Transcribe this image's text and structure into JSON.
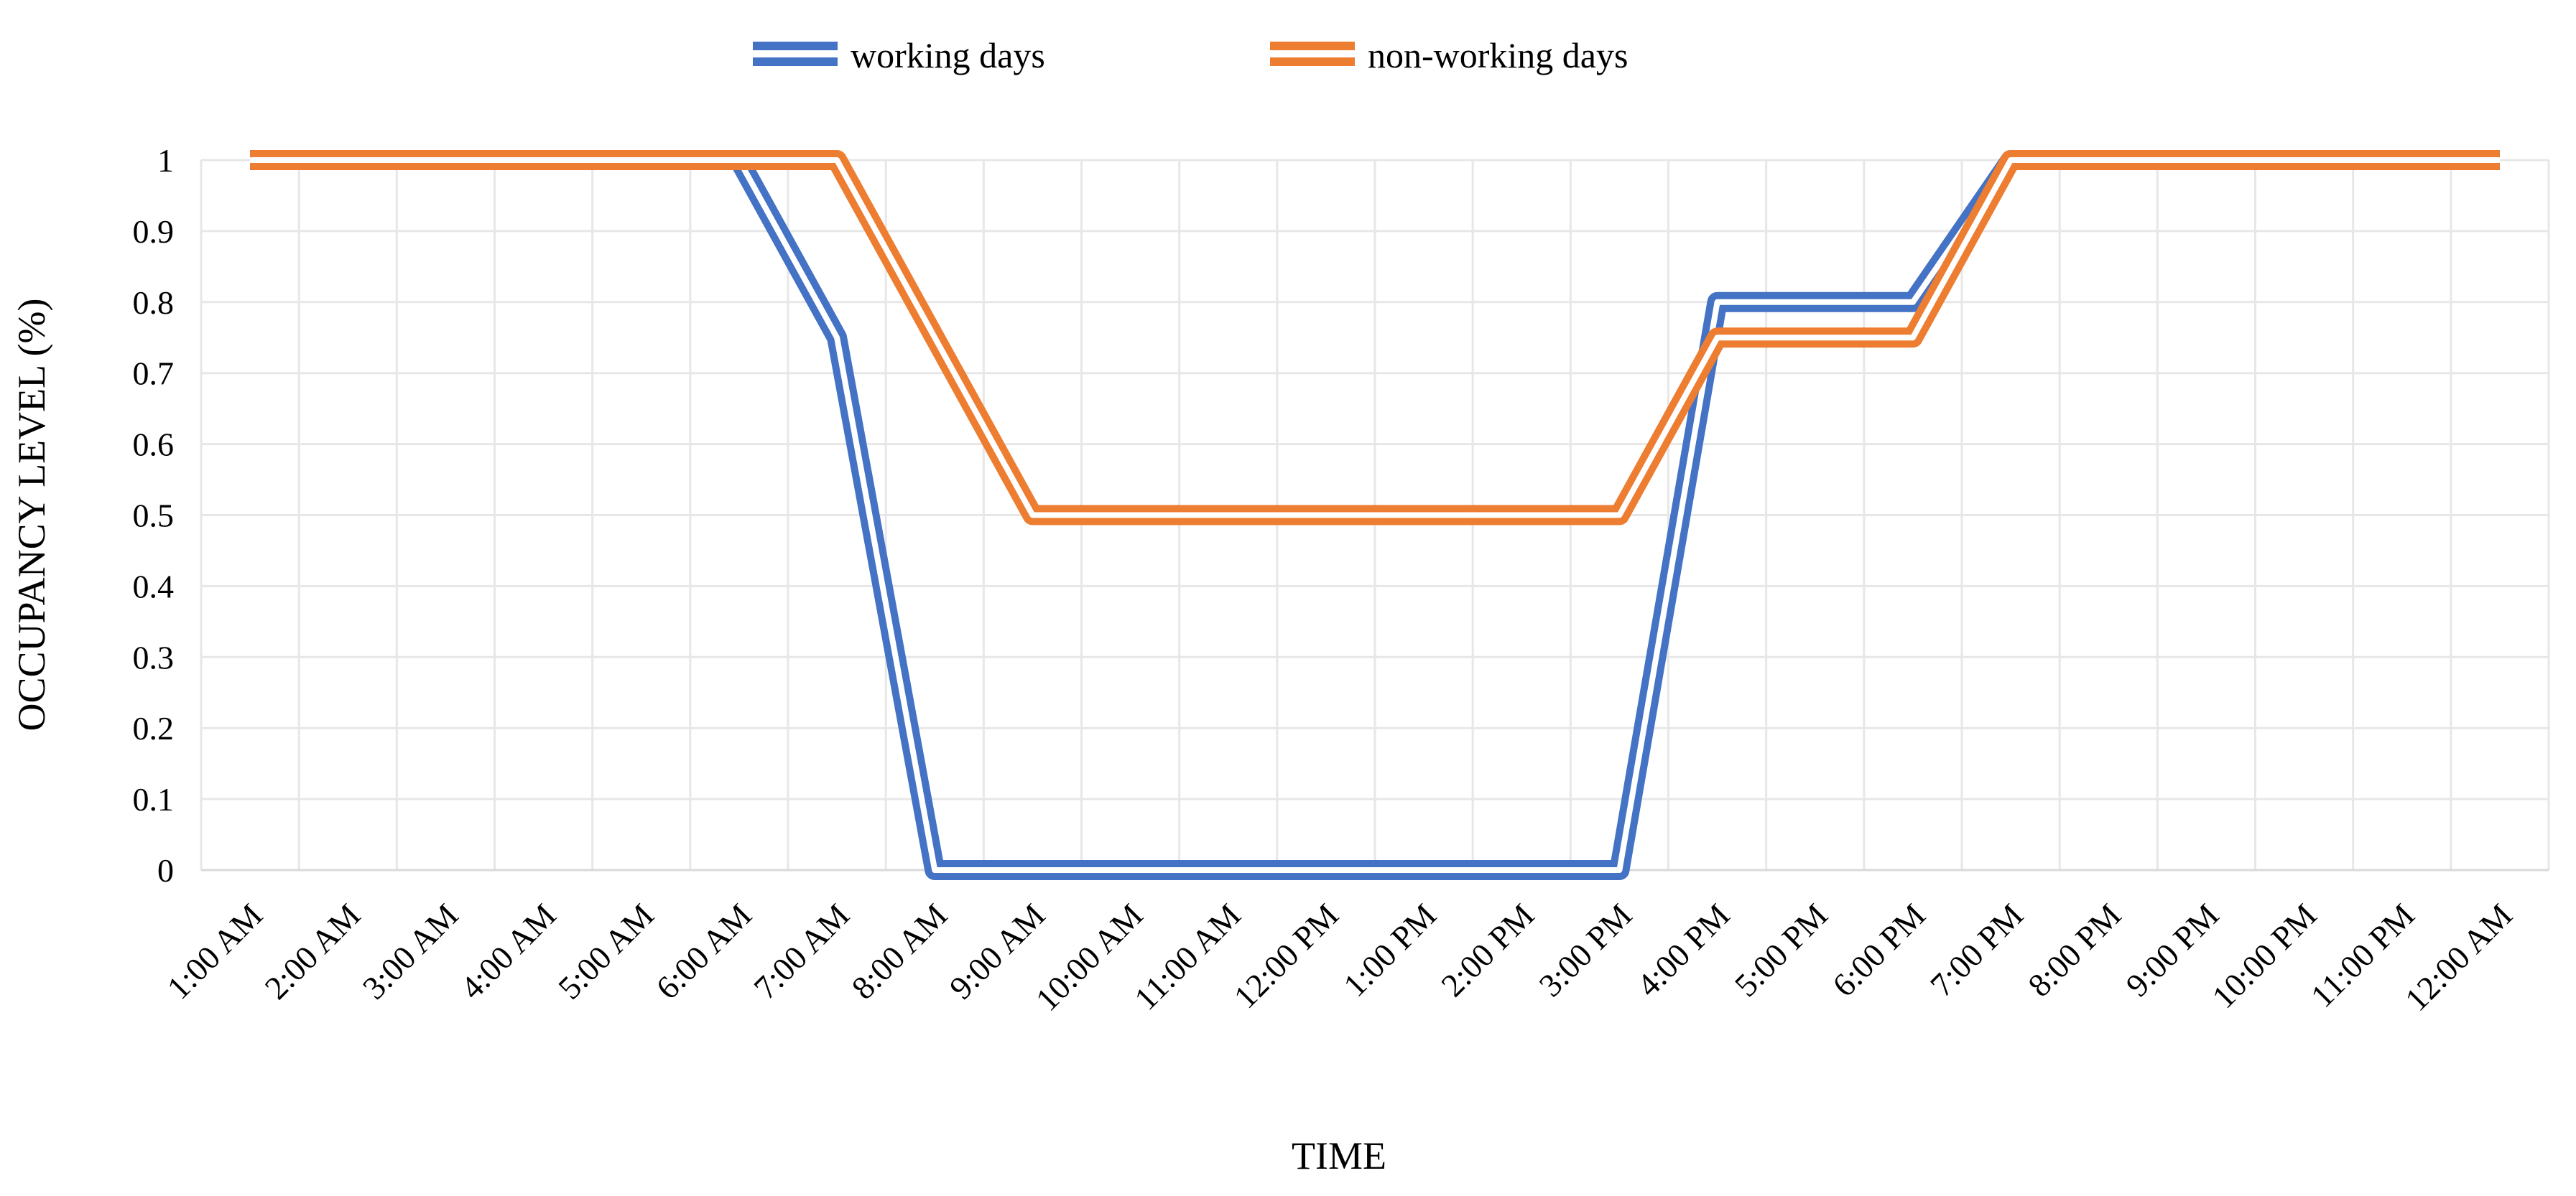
{
  "chart_data": {
    "type": "line",
    "title": "",
    "xlabel": "TIME",
    "ylabel": "OCCUPANCY LEVEL (%)",
    "categories": [
      "1:00 AM",
      "2:00 AM",
      "3:00 AM",
      "4:00 AM",
      "5:00 AM",
      "6:00 AM",
      "7:00 AM",
      "8:00 AM",
      "9:00 AM",
      "10:00 AM",
      "11:00 AM",
      "12:00 PM",
      "1:00 PM",
      "2:00 PM",
      "3:00 PM",
      "4:00 PM",
      "5:00 PM",
      "6:00 PM",
      "7:00 PM",
      "8:00 PM",
      "9:00 PM",
      "10:00 PM",
      "11:00 PM",
      "12:00 AM"
    ],
    "y_ticks": [
      0,
      0.1,
      0.2,
      0.3,
      0.4,
      0.5,
      0.6,
      0.7,
      0.8,
      0.9,
      1
    ],
    "y_tick_labels": [
      "0",
      "0.1",
      "0.2",
      "0.3",
      "0.4",
      "0.5",
      "0.6",
      "0.7",
      "0.8",
      "0.9",
      "1"
    ],
    "ylim": [
      0,
      1
    ],
    "grid": true,
    "legend_position": "top",
    "line_style": "double",
    "series": [
      {
        "name": "working days",
        "color": "#4472C4",
        "values": [
          1,
          1,
          1,
          1,
          1,
          1,
          0.75,
          0,
          0,
          0,
          0,
          0,
          0,
          0,
          0,
          0.8,
          0.8,
          0.8,
          1,
          1,
          1,
          1,
          1,
          1
        ]
      },
      {
        "name": "non-working days",
        "color": "#ED7D31",
        "values": [
          1,
          1,
          1,
          1,
          1,
          1,
          1,
          0.75,
          0.5,
          0.5,
          0.5,
          0.5,
          0.5,
          0.5,
          0.5,
          0.75,
          0.75,
          0.75,
          1,
          1,
          1,
          1,
          1,
          1
        ]
      }
    ]
  },
  "colors": {
    "gridline": "#E7E7E7",
    "axis_line": "#D9D9D9",
    "text": "#000000",
    "background": "#FFFFFF",
    "line_inner_stripe": "#FFFFFF"
  }
}
